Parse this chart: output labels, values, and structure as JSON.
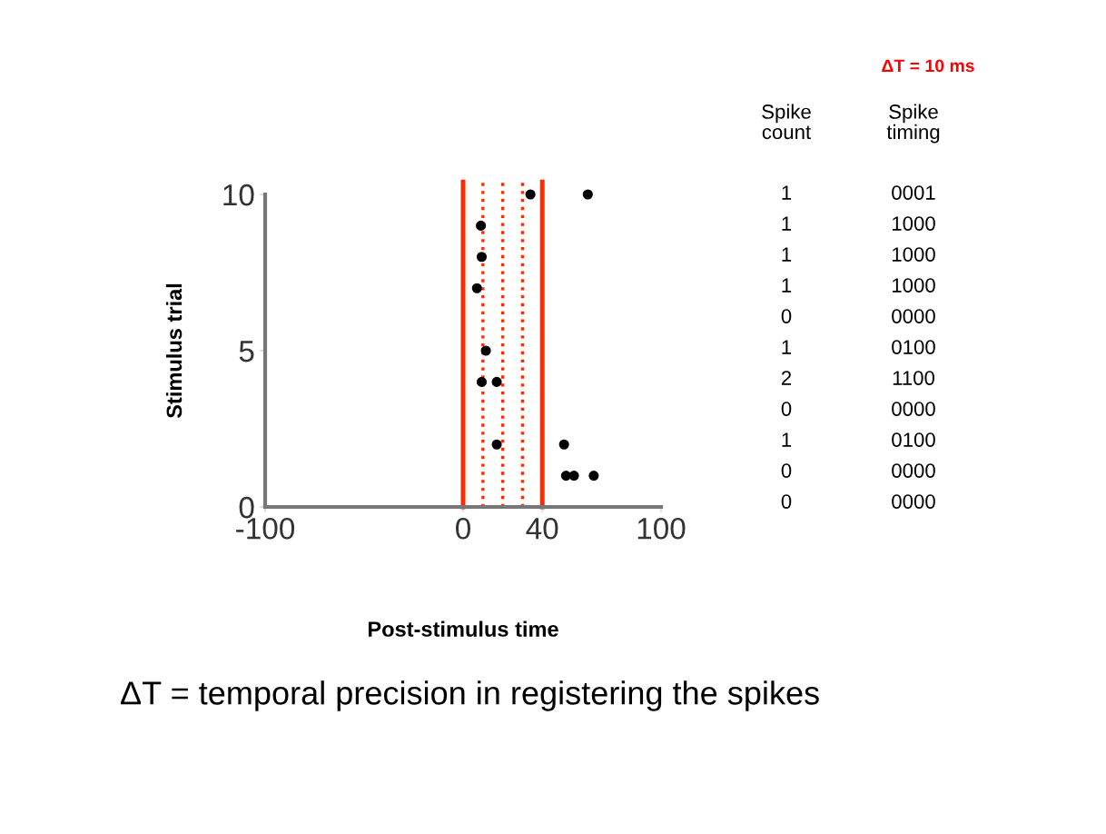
{
  "chart_data": {
    "type": "scatter",
    "xlabel": "Post-stimulus time",
    "ylabel": "Stimulus trial",
    "x": [
      34,
      63,
      9,
      9.4,
      7,
      11.5,
      9.4,
      17,
      17,
      51,
      52,
      56,
      66
    ],
    "values": [
      10,
      10,
      9,
      8,
      7,
      5,
      4,
      4,
      2,
      2,
      1,
      1,
      1
    ],
    "color": "#000000",
    "marker": "circle",
    "xlim": [
      -100,
      100
    ],
    "xticks": [
      -100,
      0,
      40,
      100
    ],
    "ylim": [
      0,
      10
    ],
    "yticks": [
      0,
      5,
      10
    ],
    "grid": false,
    "legend": false,
    "ref_lines": [
      {
        "axis": "x",
        "value": 0,
        "color": "#ff2a00",
        "line_style": "solid"
      },
      {
        "axis": "x",
        "value": 40,
        "color": "#ff2a00",
        "line_style": "solid"
      },
      {
        "axis": "x",
        "value": 10,
        "color": "#ff2a00",
        "line_style": "dotted"
      },
      {
        "axis": "x",
        "value": 20,
        "color": "#ff2a00",
        "line_style": "dotted"
      },
      {
        "axis": "x",
        "value": 30,
        "color": "#ff2a00",
        "line_style": "dotted"
      }
    ],
    "annotations": [
      "ΔT = 10 ms",
      "Spike\ncount",
      "Spike\ntiming",
      "1",
      "1",
      "1",
      "1",
      "0",
      "1",
      "2",
      "0",
      "1",
      "0",
      "0",
      "0001",
      "1000",
      "1000",
      "1000",
      "0000",
      "0100",
      "1100",
      "0000",
      "0100",
      "0000",
      "0000",
      "ΔT = temporal precision in registering the spikes"
    ]
  }
}
